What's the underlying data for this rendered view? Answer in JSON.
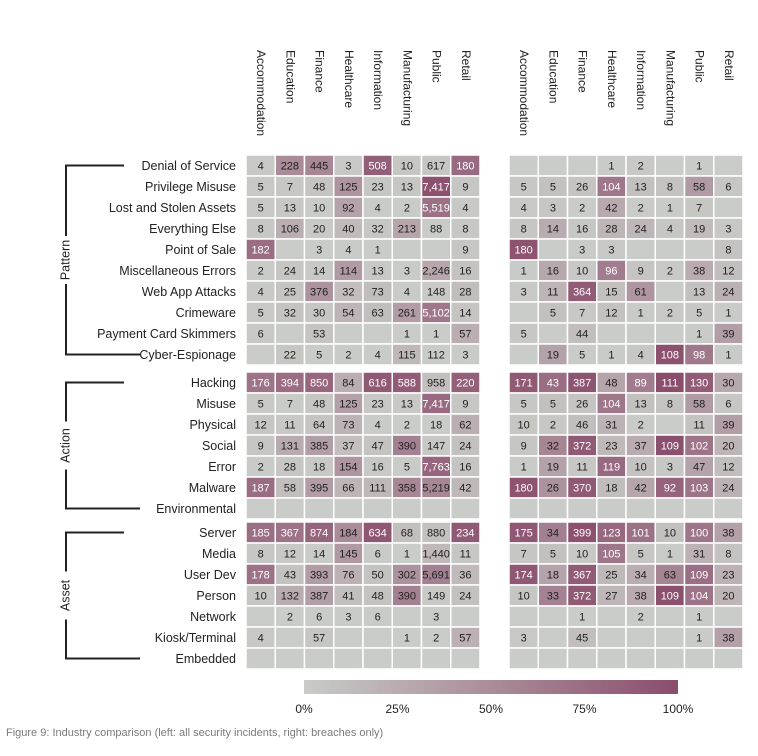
{
  "caption": "Figure 9: Industry comparison (left: all security incidents, right: breaches only)",
  "chart_data": {
    "type": "heatmap",
    "industries": [
      "Accommodation",
      "Education",
      "Finance",
      "Healthcare",
      "Information",
      "Manufacturing",
      "Public",
      "Retail"
    ],
    "groups": [
      {
        "name": "Pattern",
        "rows": [
          "Denial of Service",
          "Privilege Misuse",
          "Lost and Stolen Assets",
          "Everything Else",
          "Point of Sale",
          "Miscellaneous Errors",
          "Web App Attacks",
          "Crimeware",
          "Payment Card Skimmers",
          "Cyber-Espionage"
        ]
      },
      {
        "name": "Action",
        "rows": [
          "Hacking",
          "Misuse",
          "Physical",
          "Social",
          "Error",
          "Malware",
          "Environmental"
        ]
      },
      {
        "name": "Asset",
        "rows": [
          "Server",
          "Media",
          "User Dev",
          "Person",
          "Network",
          "Kiosk/Terminal",
          "Embedded"
        ]
      }
    ],
    "panels": [
      {
        "name": "all security incidents",
        "labels": [
          [
            "4",
            "228",
            "445",
            "3",
            "508",
            "10",
            "617",
            "180"
          ],
          [
            "5",
            "7",
            "48",
            "125",
            "23",
            "13",
            "7,417",
            "9"
          ],
          [
            "5",
            "13",
            "10",
            "92",
            "4",
            "2",
            "5,519",
            "4"
          ],
          [
            "8",
            "106",
            "20",
            "40",
            "32",
            "213",
            "88",
            "8"
          ],
          [
            "182",
            "",
            "3",
            "4",
            "1",
            "",
            "",
            "9"
          ],
          [
            "2",
            "24",
            "14",
            "114",
            "13",
            "3",
            "2,246",
            "16"
          ],
          [
            "4",
            "25",
            "376",
            "32",
            "73",
            "4",
            "148",
            "28"
          ],
          [
            "5",
            "32",
            "30",
            "54",
            "63",
            "261",
            "5,102",
            "14"
          ],
          [
            "6",
            "",
            "53",
            "",
            "",
            "1",
            "1",
            "57"
          ],
          [
            "",
            "22",
            "5",
            "2",
            "4",
            "115",
            "112",
            "3"
          ],
          [
            "176",
            "394",
            "850",
            "84",
            "616",
            "588",
            "958",
            "220"
          ],
          [
            "5",
            "7",
            "48",
            "125",
            "23",
            "13",
            "7,417",
            "9"
          ],
          [
            "12",
            "11",
            "64",
            "73",
            "4",
            "2",
            "18",
            "62"
          ],
          [
            "9",
            "131",
            "385",
            "37",
            "47",
            "390",
            "147",
            "24"
          ],
          [
            "2",
            "28",
            "18",
            "154",
            "16",
            "5",
            "7,763",
            "16"
          ],
          [
            "187",
            "58",
            "395",
            "66",
            "111",
            "358",
            "5,219",
            "42"
          ],
          [
            "",
            "",
            "",
            "",
            "",
            "",
            "",
            ""
          ],
          [
            "185",
            "367",
            "874",
            "184",
            "634",
            "68",
            "880",
            "234"
          ],
          [
            "8",
            "12",
            "14",
            "145",
            "6",
            "1",
            "1,440",
            "11"
          ],
          [
            "178",
            "43",
            "393",
            "76",
            "50",
            "302",
            "5,691",
            "36"
          ],
          [
            "10",
            "132",
            "387",
            "41",
            "48",
            "390",
            "149",
            "24"
          ],
          [
            "",
            "2",
            "6",
            "3",
            "6",
            "",
            "3",
            ""
          ],
          [
            "4",
            "",
            "57",
            "",
            "",
            "1",
            "2",
            "57"
          ],
          [
            "",
            "",
            "",
            "",
            "",
            "",
            "",
            ""
          ]
        ],
        "intensity": [
          [
            0.02,
            0.51,
            0.54,
            0.02,
            0.87,
            0.05,
            0.05,
            0.77
          ],
          [
            0.02,
            0.03,
            0.06,
            0.43,
            0.04,
            0.05,
            0.97,
            0.04
          ],
          [
            0.02,
            0.03,
            0.01,
            0.32,
            0.01,
            0.01,
            0.72,
            0.02
          ],
          [
            0.03,
            0.24,
            0.02,
            0.14,
            0.05,
            0.3,
            0.01,
            0.03
          ],
          [
            0.75,
            0,
            0,
            0.01,
            0,
            0,
            0,
            0.04
          ],
          [
            0.01,
            0.05,
            0.02,
            0.39,
            0.02,
            0.01,
            0.29,
            0.07
          ],
          [
            0.02,
            0.06,
            0.45,
            0.11,
            0.12,
            0.01,
            0.02,
            0.12
          ],
          [
            0.02,
            0.07,
            0.04,
            0.19,
            0.11,
            0.37,
            0.67,
            0.06
          ],
          [
            0.02,
            0,
            0.06,
            0,
            0,
            0,
            0,
            0.24
          ],
          [
            0,
            0.05,
            0.01,
            0.01,
            0.01,
            0.16,
            0.01,
            0.01
          ],
          [
            0.7,
            0.75,
            0.8,
            0.24,
            0.9,
            0.88,
            0.1,
            0.85
          ],
          [
            0.02,
            0.01,
            0.05,
            0.35,
            0.03,
            0.02,
            0.77,
            0.04
          ],
          [
            0.05,
            0.02,
            0.06,
            0.2,
            0.01,
            0.0,
            0.0,
            0.24
          ],
          [
            0.04,
            0.25,
            0.36,
            0.1,
            0.07,
            0.59,
            0.02,
            0.09
          ],
          [
            0.01,
            0.05,
            0.02,
            0.43,
            0.02,
            0.01,
            0.8,
            0.06
          ],
          [
            0.75,
            0.11,
            0.37,
            0.18,
            0.16,
            0.54,
            0.54,
            0.16
          ],
          [
            0,
            0,
            0,
            0,
            0,
            0,
            0,
            0
          ],
          [
            0.74,
            0.7,
            0.82,
            0.51,
            0.92,
            0.1,
            0.09,
            0.9
          ],
          [
            0.03,
            0.02,
            0.01,
            0.4,
            0.01,
            0.0,
            0.15,
            0.04
          ],
          [
            0.71,
            0.08,
            0.37,
            0.21,
            0.07,
            0.46,
            0.59,
            0.14
          ],
          [
            0.04,
            0.25,
            0.36,
            0.11,
            0.07,
            0.59,
            0.02,
            0.09
          ],
          [
            0,
            0.0,
            0.01,
            0.01,
            0.01,
            0,
            0.0,
            0
          ],
          [
            0.02,
            0,
            0.05,
            0,
            0,
            0.0,
            0.0,
            0.22
          ],
          [
            0,
            0,
            0,
            0,
            0,
            0,
            0,
            0
          ]
        ]
      },
      {
        "name": "breaches only",
        "labels": [
          [
            "",
            "",
            "",
            "1",
            "2",
            "",
            "1",
            ""
          ],
          [
            "5",
            "5",
            "26",
            "104",
            "13",
            "8",
            "58",
            "6"
          ],
          [
            "4",
            "3",
            "2",
            "42",
            "2",
            "1",
            "7",
            ""
          ],
          [
            "8",
            "14",
            "16",
            "28",
            "24",
            "4",
            "19",
            "3"
          ],
          [
            "180",
            "",
            "3",
            "3",
            "",
            "",
            "",
            "8"
          ],
          [
            "1",
            "16",
            "10",
            "96",
            "9",
            "2",
            "38",
            "12"
          ],
          [
            "3",
            "11",
            "364",
            "15",
            "61",
            "",
            "13",
            "24"
          ],
          [
            "",
            "5",
            "7",
            "12",
            "1",
            "2",
            "5",
            "1"
          ],
          [
            "5",
            "",
            "44",
            "",
            "",
            "",
            "1",
            "39"
          ],
          [
            "",
            "19",
            "5",
            "1",
            "4",
            "108",
            "98",
            "1"
          ],
          [
            "171",
            "43",
            "387",
            "48",
            "89",
            "111",
            "130",
            "30"
          ],
          [
            "5",
            "5",
            "26",
            "104",
            "13",
            "8",
            "58",
            "6"
          ],
          [
            "10",
            "2",
            "46",
            "31",
            "2",
            "",
            "11",
            "39"
          ],
          [
            "9",
            "32",
            "372",
            "23",
            "37",
            "109",
            "102",
            "20"
          ],
          [
            "1",
            "19",
            "11",
            "119",
            "10",
            "3",
            "47",
            "12"
          ],
          [
            "180",
            "26",
            "370",
            "18",
            "42",
            "92",
            "103",
            "24"
          ],
          [
            "",
            "",
            "",
            "",
            "",
            "",
            "",
            ""
          ],
          [
            "175",
            "34",
            "399",
            "123",
            "101",
            "10",
            "100",
            "38"
          ],
          [
            "7",
            "5",
            "10",
            "105",
            "5",
            "1",
            "31",
            "8"
          ],
          [
            "174",
            "18",
            "367",
            "25",
            "34",
            "63",
            "109",
            "23"
          ],
          [
            "10",
            "33",
            "372",
            "27",
            "38",
            "109",
            "104",
            "20"
          ],
          [
            "",
            "",
            "1",
            "",
            "2",
            "",
            "1",
            ""
          ],
          [
            "3",
            "",
            "45",
            "",
            "",
            "",
            "1",
            "38"
          ],
          [
            "",
            "",
            "",
            "",
            "",
            "",
            "",
            ""
          ]
        ],
        "intensity": [
          [
            0,
            0,
            0,
            0.01,
            0.02,
            0,
            0.01,
            0
          ],
          [
            0.03,
            0.09,
            0.06,
            0.67,
            0.09,
            0.07,
            0.39,
            0.05
          ],
          [
            0.02,
            0.05,
            0.0,
            0.27,
            0.01,
            0.01,
            0.05,
            0
          ],
          [
            0.04,
            0.25,
            0.04,
            0.18,
            0.17,
            0.04,
            0.13,
            0.03
          ],
          [
            0.95,
            0,
            0.01,
            0.02,
            0,
            0,
            0,
            0.07
          ],
          [
            0.01,
            0.28,
            0.02,
            0.62,
            0.06,
            0.02,
            0.26,
            0.11
          ],
          [
            0.02,
            0.19,
            0.88,
            0.1,
            0.43,
            0,
            0.09,
            0.22
          ],
          [
            0,
            0.09,
            0.02,
            0.08,
            0.01,
            0.02,
            0.03,
            0.01
          ],
          [
            0.03,
            0,
            0.11,
            0,
            0,
            0,
            0.01,
            0.36
          ],
          [
            0,
            0.33,
            0.01,
            0.01,
            0.03,
            0.97,
            0.66,
            0.01
          ],
          [
            0.9,
            0.75,
            0.94,
            0.31,
            0.63,
            1.0,
            0.88,
            0.28
          ],
          [
            0.03,
            0.09,
            0.06,
            0.67,
            0.09,
            0.07,
            0.39,
            0.05
          ],
          [
            0.05,
            0.03,
            0.11,
            0.2,
            0.01,
            0,
            0.07,
            0.36
          ],
          [
            0.05,
            0.56,
            0.9,
            0.15,
            0.26,
            0.98,
            0.69,
            0.18
          ],
          [
            0.01,
            0.33,
            0.03,
            0.77,
            0.07,
            0.03,
            0.32,
            0.11
          ],
          [
            0.95,
            0.46,
            0.9,
            0.12,
            0.3,
            0.83,
            0.7,
            0.22
          ],
          [
            0,
            0,
            0,
            0,
            0,
            0,
            0,
            0
          ],
          [
            0.92,
            0.6,
            0.97,
            0.79,
            0.71,
            0.09,
            0.68,
            0.35
          ],
          [
            0.04,
            0.09,
            0.02,
            0.68,
            0.04,
            0.01,
            0.21,
            0.07
          ],
          [
            0.92,
            0.32,
            0.89,
            0.16,
            0.24,
            0.57,
            0.74,
            0.21
          ],
          [
            0.05,
            0.58,
            0.9,
            0.17,
            0.27,
            0.98,
            0.7,
            0.18
          ],
          [
            0,
            0,
            0.0,
            0,
            0.01,
            0,
            0.01,
            0
          ],
          [
            0.02,
            0,
            0.11,
            0,
            0,
            0,
            0.01,
            0.35
          ],
          [
            0,
            0,
            0,
            0,
            0,
            0,
            0,
            0
          ]
        ]
      }
    ],
    "legend": {
      "ticks": [
        "0%",
        "25%",
        "50%",
        "75%",
        "100%"
      ],
      "color_low": "#c9ccc8",
      "color_high": "#8a4d6c"
    },
    "colors": {
      "cell_low": "#c9ccc8",
      "cell_high": "#8a4d6c",
      "text_dark": "#222222",
      "text_light": "#ffffff"
    }
  }
}
